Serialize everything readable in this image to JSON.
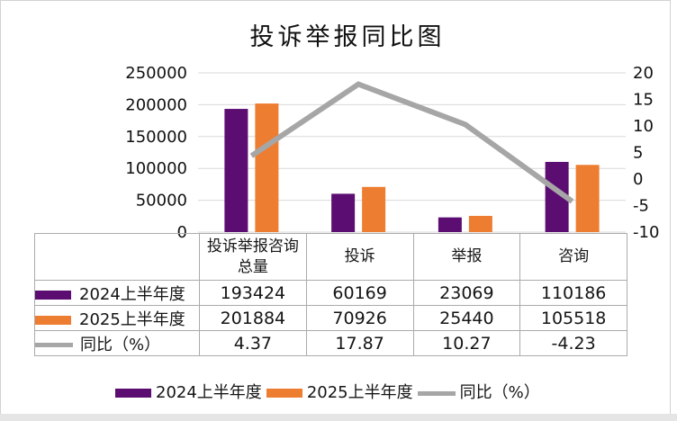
{
  "title": "投诉举报同比图",
  "chart_data": {
    "type": "combo",
    "title": "投诉举报同比图",
    "categories": [
      "投诉举报咨询总量",
      "投诉",
      "举报",
      "咨询"
    ],
    "series": [
      {
        "name": "2024上半年度",
        "type": "bar",
        "color": "#5C0D72",
        "axis": "left",
        "values": [
          193424,
          60169,
          23069,
          110186
        ]
      },
      {
        "name": "2025上半年度",
        "type": "bar",
        "color": "#ED7D31",
        "axis": "left",
        "values": [
          201884,
          70926,
          25440,
          105518
        ]
      },
      {
        "name": "同比（%）",
        "type": "line",
        "color": "#A6A6A6",
        "axis": "right",
        "values": [
          4.37,
          17.87,
          10.27,
          -4.23
        ]
      }
    ],
    "left_axis": {
      "min": 0,
      "max": 250000,
      "ticks": [
        250000,
        200000,
        150000,
        100000,
        50000,
        0
      ]
    },
    "right_axis": {
      "min": -10,
      "max": 20,
      "ticks": [
        20,
        15,
        10,
        5,
        0,
        -5,
        -10
      ]
    },
    "grid": true,
    "grid_color": "#D9D9D9",
    "legend_position": "bottom",
    "show_data_table": true
  }
}
